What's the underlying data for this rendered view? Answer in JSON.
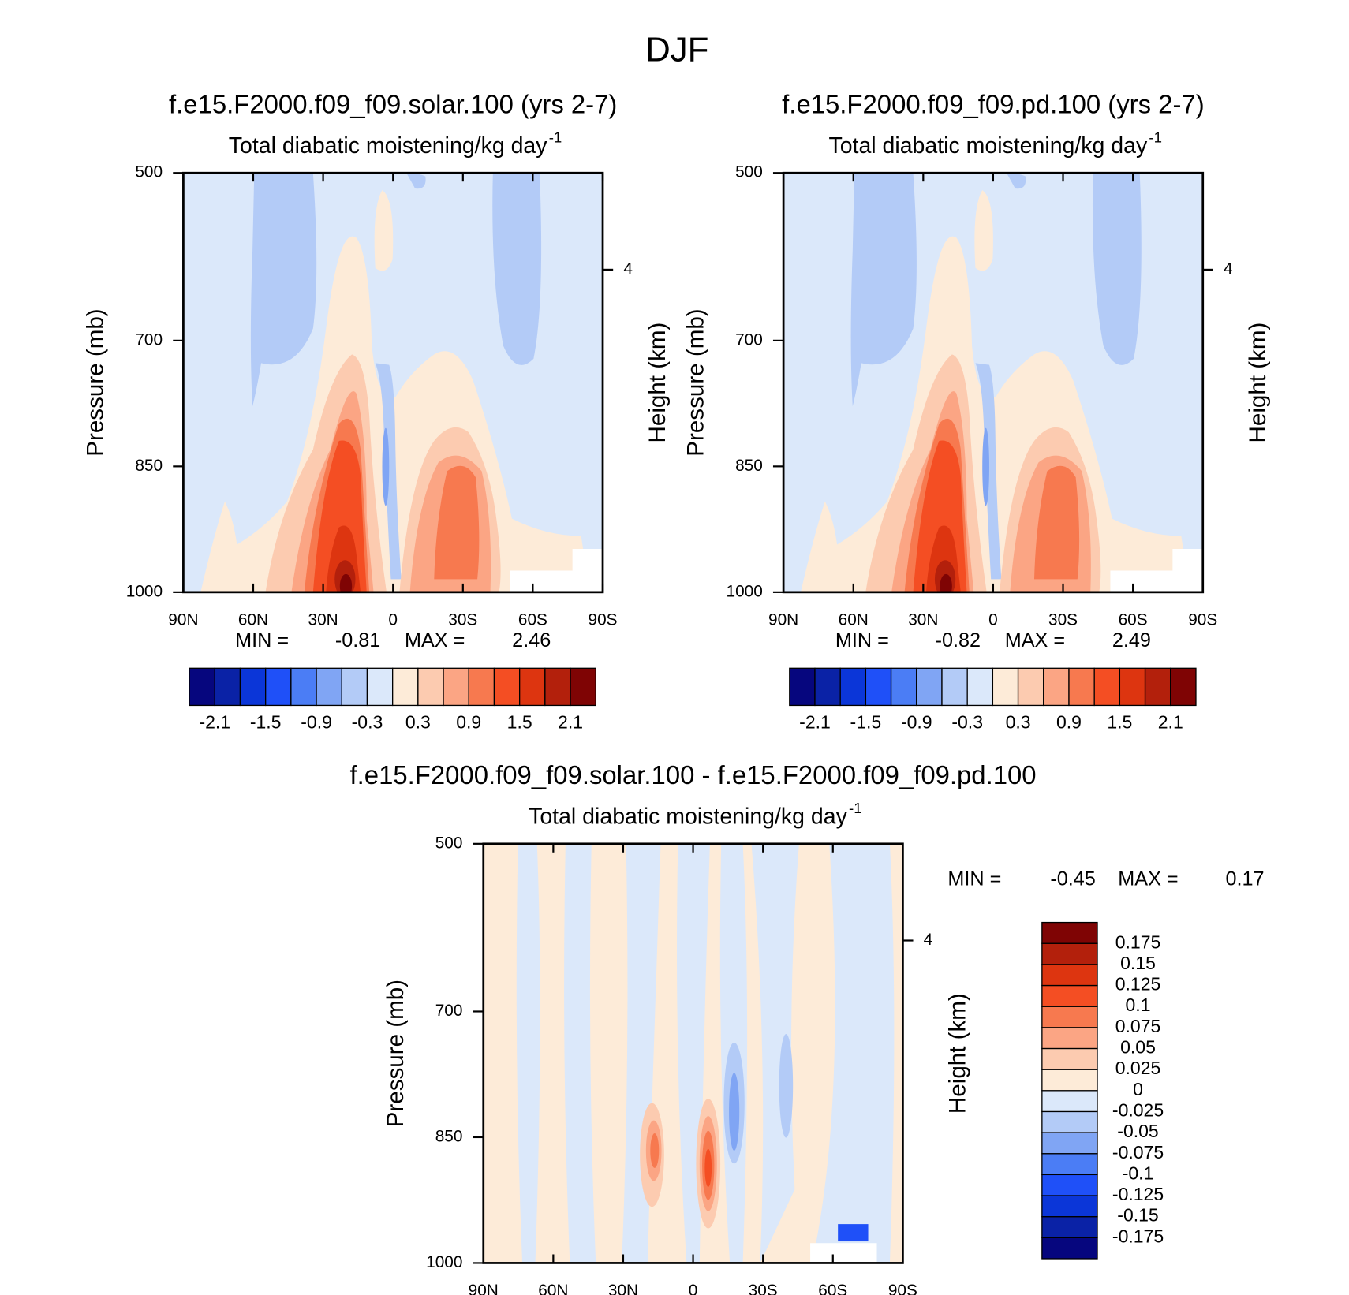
{
  "title": "DJF",
  "chart_data": [
    {
      "type": "contour",
      "title": "f.e15.F2000.f09_f09.solar.100 (yrs 2-7)",
      "subtitle": "Total diabatic moistening/kg day",
      "subtitle_superscript": "-1",
      "ylabel": "Pressure (mb)",
      "y2label": "Height (km)",
      "xlim": [
        90,
        -90
      ],
      "xticks": [
        {
          "value": 90,
          "label": "90N"
        },
        {
          "value": 60,
          "label": "60N"
        },
        {
          "value": 30,
          "label": "30N"
        },
        0,
        {
          "value": -30,
          "label": "30S"
        },
        {
          "value": -60,
          "label": "60S"
        },
        {
          "value": -90,
          "label": "90S"
        }
      ],
      "ylim": [
        1000,
        500
      ],
      "yticks": [
        500,
        700,
        850,
        1000
      ],
      "y2lim": [
        0,
        5.2
      ],
      "y2ticks": [
        4
      ],
      "min_label": "MIN =",
      "min": -0.81,
      "max_label": "MAX =",
      "max": 2.46,
      "colorbar": {
        "clim": [
          -2.4,
          2.4
        ],
        "levels": [
          -2.1,
          -1.5,
          -0.9,
          -0.3,
          0.3,
          0.9,
          1.5,
          2.1
        ],
        "colors": [
          "#06067e",
          "#0a22a6",
          "#0b36d8",
          "#1f50f8",
          "#4b7df5",
          "#80a5f4",
          "#b3cbf7",
          "#dbe8fa",
          "#fdebd8",
          "#fccbb0",
          "#fba584",
          "#f7794f",
          "#f44e23",
          "#dd3510",
          "#b3200c",
          "#7f0404"
        ]
      }
    },
    {
      "type": "contour",
      "title": "f.e15.F2000.f09_f09.pd.100 (yrs 2-7)",
      "subtitle": "Total diabatic moistening/kg day",
      "subtitle_superscript": "-1",
      "ylabel": "Pressure (mb)",
      "y2label": "Height (km)",
      "xlim": [
        90,
        -90
      ],
      "xticks": [
        {
          "value": 90,
          "label": "90N"
        },
        {
          "value": 60,
          "label": "60N"
        },
        {
          "value": 30,
          "label": "30N"
        },
        0,
        {
          "value": -30,
          "label": "30S"
        },
        {
          "value": -60,
          "label": "60S"
        },
        {
          "value": -90,
          "label": "90S"
        }
      ],
      "ylim": [
        1000,
        500
      ],
      "yticks": [
        500,
        700,
        850,
        1000
      ],
      "y2lim": [
        0,
        5.2
      ],
      "y2ticks": [
        4
      ],
      "min_label": "MIN =",
      "min": -0.82,
      "max_label": "MAX =",
      "max": 2.49,
      "colorbar": {
        "clim": [
          -2.4,
          2.4
        ],
        "levels": [
          -2.1,
          -1.5,
          -0.9,
          -0.3,
          0.3,
          0.9,
          1.5,
          2.1
        ],
        "colors": [
          "#06067e",
          "#0a22a6",
          "#0b36d8",
          "#1f50f8",
          "#4b7df5",
          "#80a5f4",
          "#b3cbf7",
          "#dbe8fa",
          "#fdebd8",
          "#fccbb0",
          "#fba584",
          "#f7794f",
          "#f44e23",
          "#dd3510",
          "#b3200c",
          "#7f0404"
        ]
      }
    },
    {
      "type": "contour",
      "title": "f.e15.F2000.f09_f09.solar.100 - f.e15.F2000.f09_f09.pd.100",
      "subtitle": "Total diabatic moistening/kg day",
      "subtitle_superscript": "-1",
      "ylabel": "Pressure (mb)",
      "y2label": "Height (km)",
      "xlim": [
        90,
        -90
      ],
      "xticks": [
        {
          "value": 90,
          "label": "90N"
        },
        {
          "value": 60,
          "label": "60N"
        },
        {
          "value": 30,
          "label": "30N"
        },
        0,
        {
          "value": -30,
          "label": "30S"
        },
        {
          "value": -60,
          "label": "60S"
        },
        {
          "value": -90,
          "label": "90S"
        }
      ],
      "ylim": [
        1000,
        500
      ],
      "yticks": [
        500,
        700,
        850,
        1000
      ],
      "y2lim": [
        0,
        5.2
      ],
      "y2ticks": [
        4
      ],
      "min_label": "MIN =",
      "min": -0.45,
      "max_label": "MAX =",
      "max": 0.17,
      "colorbar": {
        "clim": [
          -0.2,
          0.2
        ],
        "levels": [
          -0.175,
          -0.15,
          -0.125,
          -0.1,
          -0.075,
          -0.05,
          -0.025,
          0,
          0.025,
          0.05,
          0.075,
          0.1,
          0.125,
          0.15,
          0.175
        ],
        "colors": [
          "#06067e",
          "#0a22a6",
          "#0b36d8",
          "#1f50f8",
          "#4b7df5",
          "#80a5f4",
          "#b3cbf7",
          "#dbe8fa",
          "#fdebd8",
          "#fccbb0",
          "#fba584",
          "#f7794f",
          "#f44e23",
          "#dd3510",
          "#b3200c",
          "#7f0404"
        ]
      }
    }
  ]
}
